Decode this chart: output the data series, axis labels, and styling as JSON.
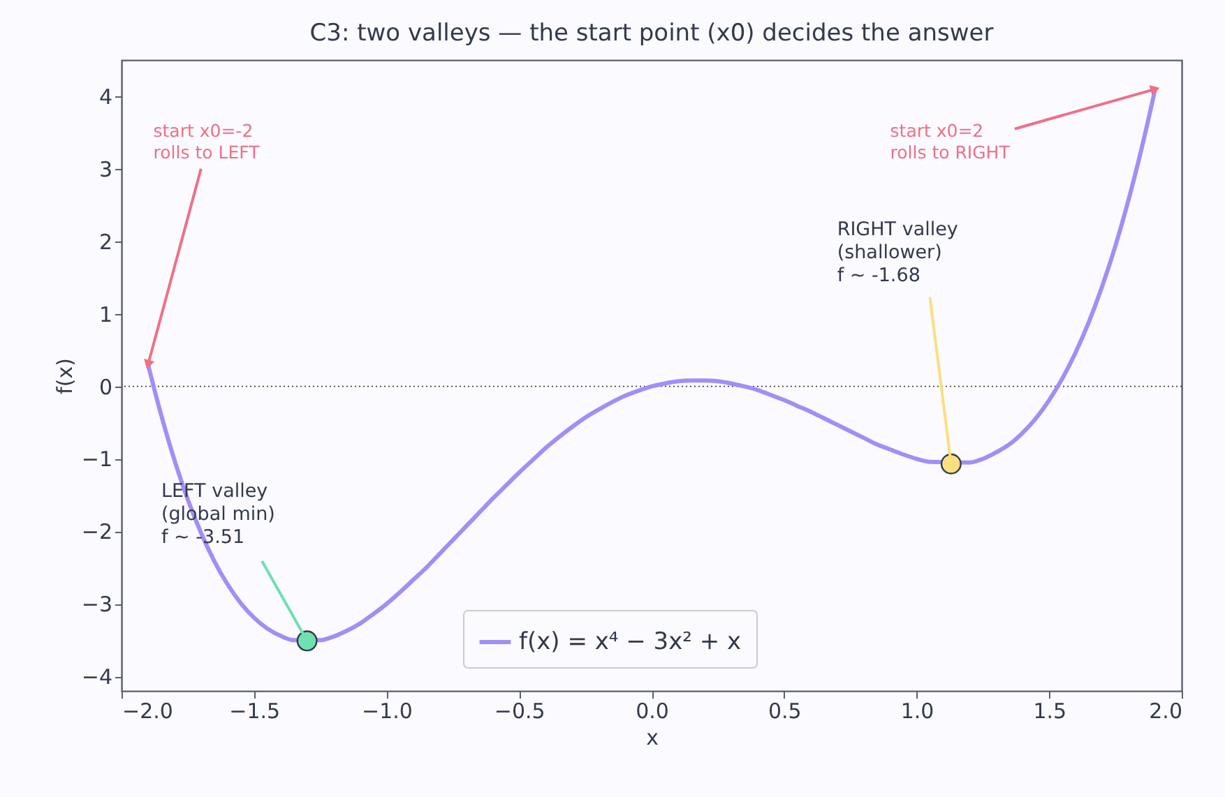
{
  "chart_data": {
    "type": "line",
    "title": "C3: two valleys — the start point (x0) decides the answer",
    "xlabel": "x",
    "ylabel": "f(x)",
    "xlim": [
      -2,
      2
    ],
    "ylim": [
      -4.2,
      4.5
    ],
    "xticks": [
      {
        "value": -2,
        "label": "−2.0"
      },
      {
        "value": -1.5,
        "label": "−1.5"
      },
      {
        "value": -1,
        "label": "−1.0"
      },
      {
        "value": -0.5,
        "label": "−0.5"
      },
      {
        "value": 0,
        "label": "0.0"
      },
      {
        "value": 0.5,
        "label": "0.5"
      },
      {
        "value": 1,
        "label": "1.0"
      },
      {
        "value": 1.5,
        "label": "1.5"
      },
      {
        "value": 2,
        "label": "2.0"
      }
    ],
    "yticks": [
      {
        "value": -4,
        "label": "−4"
      },
      {
        "value": -3,
        "label": "−3"
      },
      {
        "value": -2,
        "label": "−2"
      },
      {
        "value": -1,
        "label": "−1"
      },
      0,
      1,
      2,
      3,
      4
    ],
    "grid": false,
    "legend": "bottom",
    "ref_lines": [
      {
        "axis": "y",
        "value": 0,
        "color": "#444444",
        "line_style": "dotted"
      }
    ],
    "series": [
      {
        "name": "f(x) = x⁴ − 3x² + x",
        "type": "line",
        "color": "#a28ef5",
        "x": [
          -1.9,
          -1.85,
          -1.8,
          -1.75,
          -1.7,
          -1.65,
          -1.6,
          -1.55,
          -1.5,
          -1.45,
          -1.4,
          -1.35,
          -1.25,
          -1.2,
          -1.15,
          -1.1,
          -1.05,
          -1.0,
          -0.95,
          -0.9,
          -0.85,
          -0.8,
          -0.75,
          -0.7,
          -0.65,
          -0.6,
          -0.55,
          -0.5,
          -0.45,
          -0.4,
          -0.35,
          -0.3,
          -0.25,
          -0.2,
          -0.15,
          -0.1,
          -0.05,
          0,
          0.05,
          0.1,
          0.15,
          0.2,
          0.25,
          0.3,
          0.35,
          0.4,
          0.45,
          0.5,
          0.55,
          0.6,
          0.65,
          0.7,
          0.75,
          0.8,
          0.85,
          0.9,
          0.95,
          1.0,
          1.05,
          1.2,
          1.25,
          1.3,
          1.35,
          1.4,
          1.45,
          1.5,
          1.55,
          1.6,
          1.65,
          1.7,
          1.75,
          1.8,
          1.85,
          1.9
        ],
        "values": [
          0.3,
          -0.4,
          -1.02,
          -1.56,
          -2.02,
          -2.41,
          -2.73,
          -2.99,
          -3.19,
          -3.34,
          -3.44,
          -3.5,
          -3.5,
          -3.45,
          -3.37,
          -3.27,
          -3.14,
          -3.0,
          -2.84,
          -2.67,
          -2.5,
          -2.31,
          -2.12,
          -1.93,
          -1.74,
          -1.55,
          -1.37,
          -1.19,
          -1.02,
          -0.85,
          -0.7,
          -0.56,
          -0.43,
          -0.32,
          -0.22,
          -0.13,
          -0.06,
          0,
          0.04,
          0.07,
          0.08,
          0.08,
          0.07,
          0.04,
          0.0,
          -0.05,
          -0.12,
          -0.19,
          -0.27,
          -0.35,
          -0.44,
          -0.53,
          -0.62,
          -0.71,
          -0.8,
          -0.87,
          -0.94,
          -1.0,
          -1.04,
          -1.05,
          -1.0,
          -0.91,
          -0.8,
          -0.64,
          -0.44,
          -0.19,
          0.11,
          0.47,
          0.89,
          1.38,
          1.94,
          2.58,
          3.3,
          4.1
        ]
      },
      {
        "type": "scatter",
        "marker": "circle",
        "color": "#6fe0b0",
        "x": [
          -1.3
        ],
        "values": [
          -3.51
        ]
      },
      {
        "type": "scatter",
        "marker": "circle",
        "color": "#fadf80",
        "x": [
          1.13
        ],
        "values": [
          -1.07
        ]
      }
    ],
    "annotations": [
      {
        "text": "start x0=-2\nrolls to LEFT",
        "x": -1.9,
        "y": 0.3
      },
      {
        "text": "start x0=2\nrolls to RIGHT",
        "x": 1.9,
        "y": 4.1
      },
      {
        "text": "LEFT valley\n(global min)\nf ~ -3.51",
        "x": -1.3,
        "y": -3.51
      },
      {
        "text": "RIGHT valley\n(shallower)\nf ~ -1.68",
        "x": 1.13,
        "y": -1.07
      }
    ]
  }
}
